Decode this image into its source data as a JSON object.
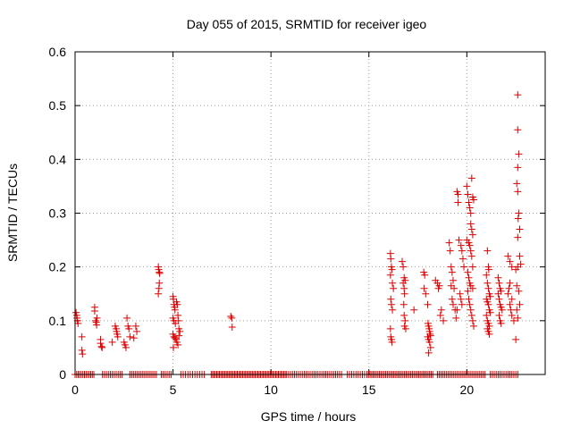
{
  "chart_data": {
    "type": "scatter",
    "title": "Day 055 of 2015, SRMTID for receiver igeo",
    "xlabel": "GPS time / hours",
    "ylabel": "SRMTID / TECUs",
    "xlim": [
      0,
      24
    ],
    "ylim": [
      0,
      0.6
    ],
    "xticks": [
      0,
      5,
      10,
      15,
      20
    ],
    "yticks": [
      0,
      0.1,
      0.2,
      0.3,
      0.4,
      0.5,
      0.6
    ],
    "xtick_labels": [
      "0",
      "5",
      "10",
      "15",
      "20"
    ],
    "ytick_labels": [
      "0",
      "0.1",
      "0.2",
      "0.3",
      "0.4",
      "0.5",
      "0.6"
    ],
    "grid": true,
    "marker": "+",
    "color": "#dd0000",
    "series": [
      {
        "name": "SRMTID",
        "points": [
          [
            0.05,
            0.115
          ],
          [
            0.08,
            0.11
          ],
          [
            0.1,
            0.105
          ],
          [
            0.12,
            0.1
          ],
          [
            0.15,
            0.095
          ],
          [
            0.35,
            0.07
          ],
          [
            0.35,
            0.045
          ],
          [
            0.38,
            0.038
          ],
          [
            1.0,
            0.125
          ],
          [
            1.0,
            0.118
          ],
          [
            1.05,
            0.1
          ],
          [
            1.08,
            0.097
          ],
          [
            1.1,
            0.092
          ],
          [
            1.12,
            0.105
          ],
          [
            1.3,
            0.065
          ],
          [
            1.3,
            0.058
          ],
          [
            1.35,
            0.052
          ],
          [
            1.38,
            0.05
          ],
          [
            1.9,
            0.06
          ],
          [
            2.05,
            0.09
          ],
          [
            2.1,
            0.085
          ],
          [
            2.12,
            0.08
          ],
          [
            2.15,
            0.075
          ],
          [
            2.18,
            0.07
          ],
          [
            2.5,
            0.06
          ],
          [
            2.55,
            0.055
          ],
          [
            2.6,
            0.05
          ],
          [
            2.65,
            0.105
          ],
          [
            2.7,
            0.09
          ],
          [
            2.75,
            0.085
          ],
          [
            2.8,
            0.07
          ],
          [
            3.0,
            0.068
          ],
          [
            3.1,
            0.09
          ],
          [
            3.15,
            0.08
          ],
          [
            4.25,
            0.2
          ],
          [
            4.27,
            0.195
          ],
          [
            4.3,
            0.19
          ],
          [
            4.32,
            0.188
          ],
          [
            4.3,
            0.17
          ],
          [
            4.28,
            0.16
          ],
          [
            4.25,
            0.15
          ],
          [
            5.0,
            0.145
          ],
          [
            5.02,
            0.14
          ],
          [
            5.05,
            0.13
          ],
          [
            5.08,
            0.125
          ],
          [
            5.1,
            0.12
          ],
          [
            5.0,
            0.105
          ],
          [
            5.05,
            0.1
          ],
          [
            5.12,
            0.095
          ],
          [
            5.0,
            0.075
          ],
          [
            5.05,
            0.07
          ],
          [
            5.1,
            0.068
          ],
          [
            5.15,
            0.065
          ],
          [
            5.2,
            0.06
          ],
          [
            5.25,
            0.055
          ],
          [
            5.02,
            0.05
          ],
          [
            5.18,
            0.135
          ],
          [
            5.22,
            0.13
          ],
          [
            5.25,
            0.11
          ],
          [
            5.28,
            0.1
          ],
          [
            5.3,
            0.085
          ],
          [
            5.35,
            0.08
          ],
          [
            5.3,
            0.072
          ],
          [
            7.95,
            0.108
          ],
          [
            8.0,
            0.105
          ],
          [
            8.02,
            0.088
          ],
          [
            16.1,
            0.225
          ],
          [
            16.12,
            0.215
          ],
          [
            16.15,
            0.2
          ],
          [
            16.18,
            0.195
          ],
          [
            16.1,
            0.185
          ],
          [
            16.2,
            0.17
          ],
          [
            16.25,
            0.16
          ],
          [
            16.12,
            0.14
          ],
          [
            16.15,
            0.13
          ],
          [
            16.2,
            0.12
          ],
          [
            16.1,
            0.085
          ],
          [
            16.12,
            0.07
          ],
          [
            16.15,
            0.065
          ],
          [
            16.18,
            0.06
          ],
          [
            16.7,
            0.21
          ],
          [
            16.75,
            0.2
          ],
          [
            16.8,
            0.18
          ],
          [
            16.85,
            0.175
          ],
          [
            16.75,
            0.17
          ],
          [
            16.8,
            0.16
          ],
          [
            16.82,
            0.15
          ],
          [
            16.78,
            0.13
          ],
          [
            16.8,
            0.11
          ],
          [
            16.85,
            0.1
          ],
          [
            16.82,
            0.09
          ],
          [
            16.88,
            0.085
          ],
          [
            17.3,
            0.12
          ],
          [
            17.8,
            0.19
          ],
          [
            17.85,
            0.185
          ],
          [
            17.82,
            0.16
          ],
          [
            17.9,
            0.15
          ],
          [
            18.0,
            0.13
          ],
          [
            18.02,
            0.095
          ],
          [
            18.05,
            0.09
          ],
          [
            18.08,
            0.085
          ],
          [
            18.1,
            0.08
          ],
          [
            18.12,
            0.075
          ],
          [
            18.15,
            0.072
          ],
          [
            18.0,
            0.07
          ],
          [
            18.05,
            0.065
          ],
          [
            18.1,
            0.06
          ],
          [
            18.15,
            0.05
          ],
          [
            18.05,
            0.04
          ],
          [
            18.4,
            0.175
          ],
          [
            18.5,
            0.17
          ],
          [
            18.55,
            0.16
          ],
          [
            18.6,
            0.165
          ],
          [
            18.7,
            0.12
          ],
          [
            18.65,
            0.11
          ],
          [
            18.8,
            0.1
          ],
          [
            19.1,
            0.245
          ],
          [
            19.15,
            0.23
          ],
          [
            19.2,
            0.2
          ],
          [
            19.25,
            0.19
          ],
          [
            19.3,
            0.175
          ],
          [
            19.2,
            0.165
          ],
          [
            19.35,
            0.16
          ],
          [
            19.25,
            0.14
          ],
          [
            19.3,
            0.13
          ],
          [
            19.4,
            0.12
          ],
          [
            19.45,
            0.105
          ],
          [
            19.5,
            0.12
          ],
          [
            19.5,
            0.34
          ],
          [
            19.55,
            0.335
          ],
          [
            19.55,
            0.32
          ],
          [
            19.6,
            0.25
          ],
          [
            19.7,
            0.24
          ],
          [
            19.75,
            0.23
          ],
          [
            19.8,
            0.215
          ],
          [
            19.85,
            0.2
          ],
          [
            19.65,
            0.15
          ],
          [
            19.7,
            0.14
          ],
          [
            19.75,
            0.13
          ],
          [
            20.0,
            0.35
          ],
          [
            20.05,
            0.335
          ],
          [
            20.1,
            0.32
          ],
          [
            20.15,
            0.31
          ],
          [
            20.2,
            0.3
          ],
          [
            20.25,
            0.365
          ],
          [
            20.3,
            0.33
          ],
          [
            20.35,
            0.325
          ],
          [
            20.2,
            0.28
          ],
          [
            20.25,
            0.27
          ],
          [
            20.3,
            0.26
          ],
          [
            20.0,
            0.25
          ],
          [
            20.1,
            0.245
          ],
          [
            20.15,
            0.24
          ],
          [
            20.2,
            0.23
          ],
          [
            20.25,
            0.22
          ],
          [
            20.3,
            0.2
          ],
          [
            20.05,
            0.19
          ],
          [
            20.1,
            0.18
          ],
          [
            20.15,
            0.17
          ],
          [
            20.2,
            0.165
          ],
          [
            20.3,
            0.16
          ],
          [
            20.05,
            0.155
          ],
          [
            20.1,
            0.14
          ],
          [
            20.15,
            0.13
          ],
          [
            20.2,
            0.12
          ],
          [
            20.25,
            0.11
          ],
          [
            20.3,
            0.1
          ],
          [
            20.35,
            0.09
          ],
          [
            21.05,
            0.23
          ],
          [
            21.1,
            0.2
          ],
          [
            21.12,
            0.195
          ],
          [
            21.0,
            0.185
          ],
          [
            21.05,
            0.17
          ],
          [
            21.1,
            0.16
          ],
          [
            21.15,
            0.15
          ],
          [
            21.2,
            0.145
          ],
          [
            21.0,
            0.14
          ],
          [
            21.05,
            0.135
          ],
          [
            21.1,
            0.13
          ],
          [
            21.15,
            0.12
          ],
          [
            21.2,
            0.115
          ],
          [
            21.0,
            0.11
          ],
          [
            21.05,
            0.1
          ],
          [
            21.1,
            0.095
          ],
          [
            21.15,
            0.09
          ],
          [
            21.05,
            0.085
          ],
          [
            21.1,
            0.08
          ],
          [
            21.15,
            0.075
          ],
          [
            21.6,
            0.18
          ],
          [
            21.65,
            0.17
          ],
          [
            21.7,
            0.16
          ],
          [
            21.75,
            0.155
          ],
          [
            21.6,
            0.15
          ],
          [
            21.65,
            0.14
          ],
          [
            21.7,
            0.13
          ],
          [
            21.75,
            0.125
          ],
          [
            21.8,
            0.12
          ],
          [
            21.65,
            0.11
          ],
          [
            21.7,
            0.1
          ],
          [
            21.75,
            0.095
          ],
          [
            22.1,
            0.22
          ],
          [
            22.2,
            0.21
          ],
          [
            22.3,
            0.2
          ],
          [
            22.2,
            0.17
          ],
          [
            22.15,
            0.16
          ],
          [
            22.1,
            0.15
          ],
          [
            22.3,
            0.14
          ],
          [
            22.2,
            0.13
          ],
          [
            22.25,
            0.12
          ],
          [
            22.3,
            0.11
          ],
          [
            22.4,
            0.1
          ],
          [
            22.6,
            0.52
          ],
          [
            22.6,
            0.455
          ],
          [
            22.65,
            0.41
          ],
          [
            22.6,
            0.385
          ],
          [
            22.55,
            0.355
          ],
          [
            22.6,
            0.34
          ],
          [
            22.65,
            0.3
          ],
          [
            22.62,
            0.29
          ],
          [
            22.7,
            0.27
          ],
          [
            22.6,
            0.255
          ],
          [
            22.7,
            0.22
          ],
          [
            22.75,
            0.205
          ],
          [
            22.6,
            0.2
          ],
          [
            22.5,
            0.195
          ],
          [
            22.55,
            0.165
          ],
          [
            22.65,
            0.155
          ],
          [
            22.7,
            0.13
          ],
          [
            22.55,
            0.12
          ],
          [
            22.6,
            0.105
          ],
          [
            22.5,
            0.065
          ]
        ],
        "zero_segments": [
          [
            0,
            1.0,
            0.08
          ],
          [
            1.4,
            2.4,
            0.1
          ],
          [
            2.8,
            4.2,
            0.09
          ],
          [
            4.4,
            4.95,
            0.1
          ],
          [
            5.4,
            6.6,
            0.12
          ],
          [
            6.95,
            10.8,
            0.07
          ],
          [
            10.9,
            13.6,
            0.1
          ],
          [
            13.9,
            14.8,
            0.11
          ],
          [
            14.9,
            18.3,
            0.08
          ],
          [
            18.5,
            21.0,
            0.09
          ],
          [
            21.2,
            22.6,
            0.1
          ]
        ]
      }
    ]
  }
}
